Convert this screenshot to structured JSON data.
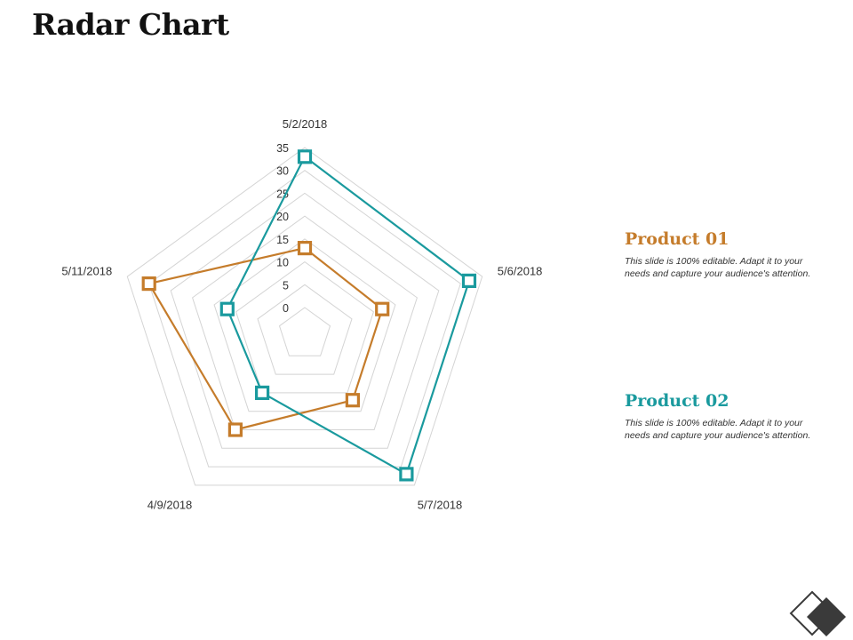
{
  "slide": {
    "title": "Radar Chart"
  },
  "legend": [
    {
      "title": "Product 01",
      "color": "#C57C2B",
      "description": "This slide is 100% editable. Adapt it to your needs and capture your audience's attention."
    },
    {
      "title": "Product 02",
      "color": "#1A9A9E",
      "description": "This slide is 100% editable. Adapt it to your needs and capture your audience's attention."
    }
  ],
  "chart_data": {
    "type": "radar",
    "categories": [
      "5/2/2018",
      "5/6/2018",
      "5/7/2018",
      "4/9/2018",
      "5/11/2018"
    ],
    "axis_ticks": [
      0,
      5,
      10,
      15,
      20,
      25,
      30,
      35
    ],
    "rlim": [
      0,
      35
    ],
    "grid": true,
    "series": [
      {
        "color": "#C57C2B",
        "values": [
          13,
          12,
          12,
          20,
          30
        ]
      },
      {
        "color": "#1A9A9E",
        "values": [
          33,
          32,
          32,
          10,
          12
        ]
      }
    ]
  },
  "decoration": {
    "logo_icon": "diamond-logo-icon",
    "logo_fill": "#3a3a3a"
  }
}
